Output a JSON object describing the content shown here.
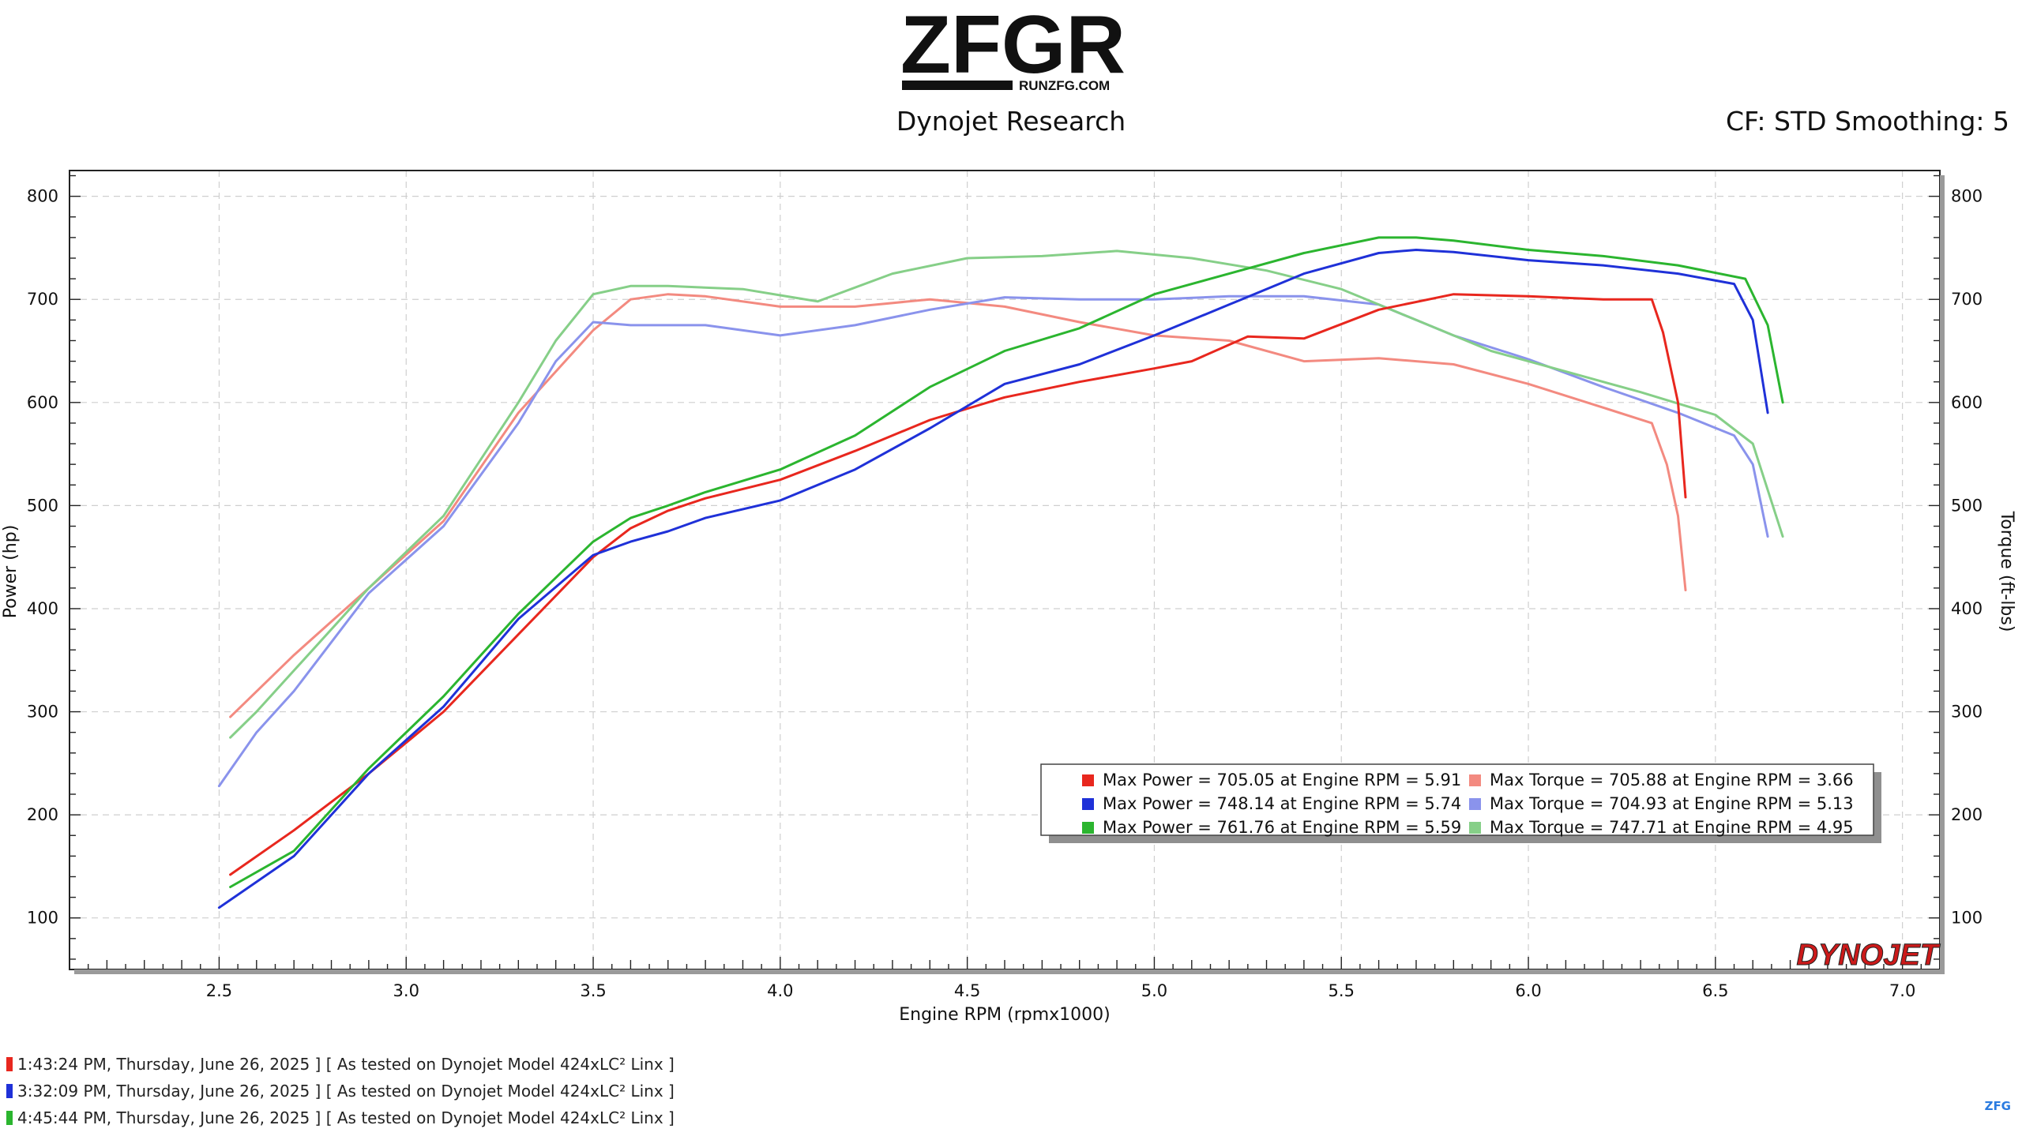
{
  "logo": {
    "wordmark": "ZFGR",
    "url_text": "RUNZFG.COM"
  },
  "header": {
    "subtitle": "Dynojet Research",
    "correction": "CF: STD Smoothing: 5"
  },
  "chart_data": {
    "type": "line",
    "title": "",
    "xlabel": "Engine RPM (rpmx1000)",
    "ylabel_left": "Power (hp)",
    "ylabel_right": "Torque (ft-lbs)",
    "xlim": [
      2.1,
      7.1
    ],
    "ylim": [
      50,
      825
    ],
    "x_ticks": [
      "2.5",
      "3.0",
      "3.5",
      "4.0",
      "4.5",
      "5.0",
      "5.5",
      "6.0",
      "6.5",
      "7.0"
    ],
    "y_ticks": [
      "100",
      "200",
      "300",
      "400",
      "500",
      "600",
      "700",
      "800"
    ],
    "grid": true,
    "legend_position": "lower-right",
    "series": [
      {
        "name": "Max Power = 705.05 at Engine RPM = 5.91",
        "color": "#e8271e",
        "kind": "power",
        "x": [
          2.53,
          2.7,
          2.9,
          3.1,
          3.3,
          3.5,
          3.6,
          3.7,
          3.8,
          4.0,
          4.2,
          4.4,
          4.6,
          4.8,
          5.0,
          5.1,
          5.25,
          5.4,
          5.6,
          5.8,
          6.0,
          6.2,
          6.33,
          6.36,
          6.4,
          6.42
        ],
        "y": [
          142,
          185,
          240,
          300,
          375,
          450,
          478,
          495,
          507,
          525,
          553,
          583,
          605,
          620,
          633,
          640,
          664,
          662,
          690,
          705,
          703,
          700,
          700,
          668,
          600,
          508
        ]
      },
      {
        "name": "Max Power = 748.14 at Engine RPM = 5.74",
        "color": "#1f31d8",
        "kind": "power",
        "x": [
          2.5,
          2.7,
          2.9,
          3.1,
          3.3,
          3.5,
          3.6,
          3.7,
          3.8,
          4.0,
          4.2,
          4.4,
          4.6,
          4.8,
          5.0,
          5.2,
          5.4,
          5.6,
          5.7,
          5.8,
          6.0,
          6.2,
          6.4,
          6.55,
          6.6,
          6.64
        ],
        "y": [
          110,
          160,
          240,
          305,
          390,
          452,
          465,
          475,
          488,
          505,
          535,
          575,
          618,
          637,
          665,
          695,
          725,
          745,
          748,
          746,
          738,
          733,
          725,
          715,
          680,
          590
        ]
      },
      {
        "name": "Max Power = 761.76 at Engine RPM = 5.59",
        "color": "#2bb52f",
        "kind": "power",
        "x": [
          2.53,
          2.7,
          2.9,
          3.1,
          3.3,
          3.5,
          3.6,
          3.7,
          3.8,
          4.0,
          4.2,
          4.4,
          4.6,
          4.8,
          5.0,
          5.2,
          5.4,
          5.6,
          5.7,
          5.8,
          6.0,
          6.2,
          6.4,
          6.58,
          6.64,
          6.68
        ],
        "y": [
          130,
          165,
          245,
          315,
          395,
          465,
          488,
          500,
          513,
          535,
          568,
          615,
          650,
          672,
          705,
          725,
          745,
          760,
          760,
          757,
          748,
          742,
          733,
          720,
          675,
          600
        ]
      },
      {
        "name": "Max Torque = 705.88 at Engine RPM = 3.66",
        "color": "#f38a80",
        "kind": "torque",
        "x": [
          2.53,
          2.7,
          2.9,
          3.1,
          3.3,
          3.5,
          3.6,
          3.7,
          3.8,
          4.0,
          4.2,
          4.4,
          4.6,
          4.8,
          5.0,
          5.2,
          5.4,
          5.6,
          5.8,
          6.0,
          6.2,
          6.33,
          6.37,
          6.4,
          6.42
        ],
        "y": [
          295,
          355,
          420,
          485,
          590,
          670,
          700,
          705,
          703,
          693,
          693,
          700,
          693,
          678,
          665,
          660,
          640,
          643,
          637,
          618,
          595,
          580,
          540,
          490,
          418
        ]
      },
      {
        "name": "Max Torque = 704.93 at Engine RPM = 5.13",
        "color": "#8a93ec",
        "kind": "torque",
        "x": [
          2.5,
          2.6,
          2.7,
          2.9,
          3.1,
          3.3,
          3.4,
          3.5,
          3.6,
          3.8,
          4.0,
          4.2,
          4.4,
          4.6,
          4.8,
          5.0,
          5.2,
          5.4,
          5.6,
          5.8,
          6.0,
          6.2,
          6.4,
          6.55,
          6.6,
          6.64
        ],
        "y": [
          228,
          280,
          320,
          415,
          480,
          580,
          640,
          678,
          675,
          675,
          665,
          675,
          690,
          702,
          700,
          700,
          703,
          703,
          695,
          665,
          642,
          615,
          590,
          568,
          540,
          470
        ]
      },
      {
        "name": "Max Torque = 747.71 at Engine RPM = 4.95",
        "color": "#86cf88",
        "kind": "torque",
        "x": [
          2.53,
          2.6,
          2.7,
          2.9,
          3.1,
          3.3,
          3.4,
          3.5,
          3.6,
          3.7,
          3.9,
          4.1,
          4.3,
          4.5,
          4.7,
          4.9,
          5.1,
          5.3,
          5.5,
          5.7,
          5.9,
          6.1,
          6.3,
          6.5,
          6.6,
          6.68
        ],
        "y": [
          275,
          300,
          340,
          420,
          490,
          600,
          660,
          705,
          713,
          713,
          710,
          698,
          725,
          740,
          742,
          747,
          740,
          728,
          710,
          680,
          650,
          630,
          610,
          588,
          560,
          470
        ]
      }
    ]
  },
  "footer": {
    "runs": [
      {
        "text": "1:43:24 PM, Thursday, June 26, 2025 ] [ As tested on Dynojet Model 424xLC² Linx ]",
        "color": "#e8271e"
      },
      {
        "text": "3:32:09 PM, Thursday, June 26, 2025 ] [ As tested on Dynojet Model 424xLC² Linx ]",
        "color": "#1f31d8"
      },
      {
        "text": "4:45:44 PM, Thursday, June 26, 2025 ] [ As tested on Dynojet Model 424xLC² Linx ]",
        "color": "#2bb52f"
      }
    ],
    "brand": "DYNOJET",
    "corner_tag": "ZFG"
  }
}
